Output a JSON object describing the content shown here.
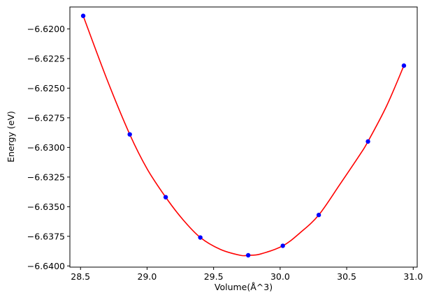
{
  "chart_data": {
    "type": "line",
    "title": "",
    "xlabel": "Volume(Å^3)",
    "ylabel": "Energy (eV)",
    "xlim": [
      28.42,
      31.03
    ],
    "ylim": [
      -6.6401,
      -6.61815
    ],
    "x_ticks": [
      28.5,
      29.0,
      29.5,
      30.0,
      30.5,
      31.0
    ],
    "x_tick_labels": [
      "28.5",
      "29.0",
      "29.5",
      "30.0",
      "30.5",
      "31.0"
    ],
    "y_ticks": [
      -6.62,
      -6.6225,
      -6.625,
      -6.6275,
      -6.63,
      -6.6325,
      -6.635,
      -6.6375,
      -6.64
    ],
    "y_tick_labels": [
      "−6.6200",
      "−6.6225",
      "−6.6250",
      "−6.6275",
      "−6.6300",
      "−6.6325",
      "−6.6350",
      "−6.6375",
      "−6.6400"
    ],
    "grid": false,
    "legend": "none",
    "series": [
      {
        "kind": "scatter",
        "color": "#0000ff",
        "x": [
          28.52,
          28.87,
          29.14,
          29.4,
          29.76,
          30.02,
          30.29,
          30.66,
          30.93
        ],
        "y": [
          -6.6189,
          -6.6289,
          -6.6342,
          -6.6376,
          -6.6391,
          -6.6383,
          -6.6357,
          -6.6295,
          -6.6231
        ]
      },
      {
        "kind": "fit-line",
        "color": "#ff0000",
        "x": [
          28.52,
          28.7,
          28.87,
          29.0,
          29.14,
          29.27,
          29.4,
          29.55,
          29.7,
          29.76,
          29.85,
          30.02,
          30.15,
          30.29,
          30.45,
          30.6,
          30.66,
          30.8,
          30.93
        ],
        "y": [
          -6.6189,
          -6.6243,
          -6.6289,
          -6.6318,
          -6.6342,
          -6.6361,
          -6.6376,
          -6.6386,
          -6.6391,
          -6.6391,
          -6.639,
          -6.6383,
          -6.6372,
          -6.6357,
          -6.6331,
          -6.6306,
          -6.6295,
          -6.6265,
          -6.6231
        ]
      }
    ]
  }
}
